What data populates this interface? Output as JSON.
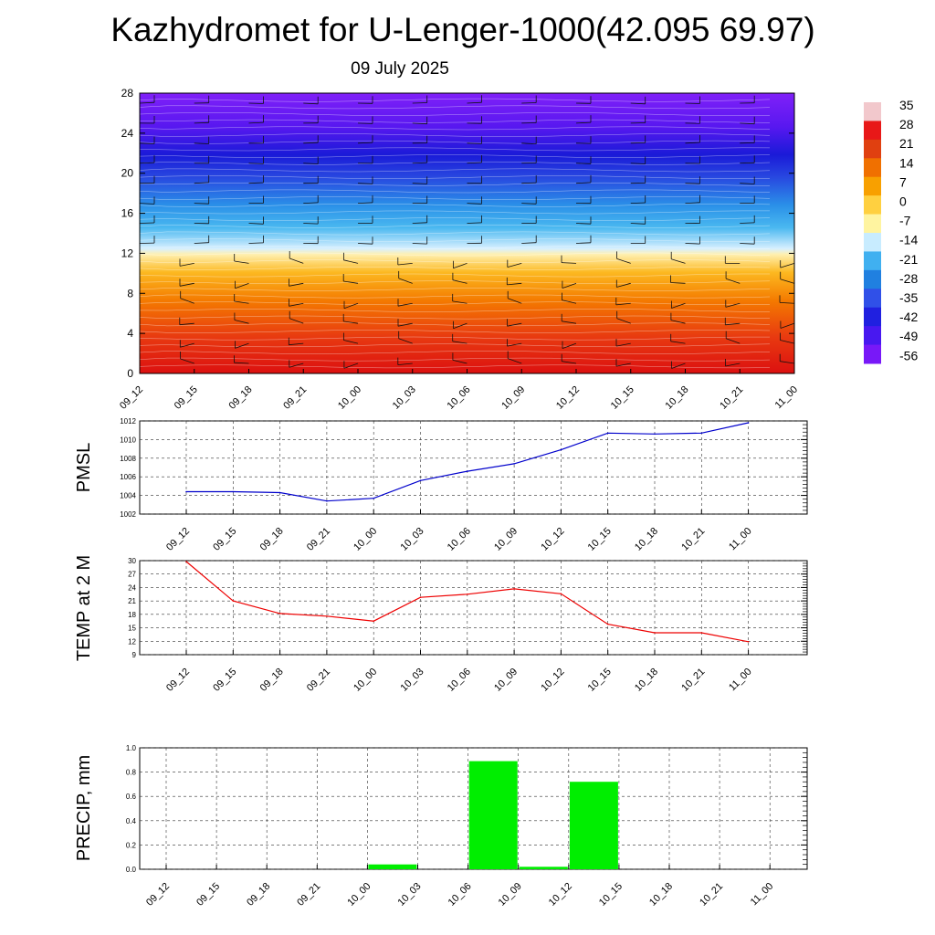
{
  "title": "Kazhydromet for U-Lenger-1000(42.095 69.97)",
  "subtitle": "09 July 2025",
  "time_labels": [
    "09_12",
    "09_15",
    "09_18",
    "09_21",
    "10_00",
    "10_03",
    "10_06",
    "10_09",
    "10_12",
    "10_15",
    "10_18",
    "10_21",
    "11_00"
  ],
  "colorbar": {
    "labels": [
      "35",
      "28",
      "21",
      "14",
      "7",
      "0",
      "-7",
      "-14",
      "-21",
      "-28",
      "-35",
      "-42",
      "-49",
      "-56"
    ],
    "colors": [
      "#f2c8cc",
      "#e81818",
      "#e04010",
      "#f07000",
      "#f8a000",
      "#ffd040",
      "#fff4a0",
      "#c8ecff",
      "#40b0f0",
      "#2080e0",
      "#3050e8",
      "#2020e0",
      "#4818f0",
      "#7818f8"
    ]
  },
  "chart_data": [
    {
      "type": "heatmap",
      "name": "temperature-wind cross-section",
      "x": [
        "09_12",
        "09_15",
        "09_18",
        "09_21",
        "10_00",
        "10_03",
        "10_06",
        "10_09",
        "10_12",
        "10_15",
        "10_18",
        "10_21",
        "11_00"
      ],
      "ylim": [
        0,
        28
      ],
      "yticks": [
        0,
        4,
        8,
        12,
        16,
        20,
        24,
        28
      ],
      "value_range": [
        -56,
        35
      ],
      "levels": [
        35,
        28,
        21,
        14,
        7,
        0,
        -7,
        -14,
        -21,
        -28,
        -35,
        -42,
        -49,
        -56
      ],
      "freezing_level_km": 12
    },
    {
      "type": "line",
      "ylabel": "PMSL",
      "x": [
        "09_12",
        "09_15",
        "09_18",
        "09_21",
        "10_00",
        "10_03",
        "10_06",
        "10_09",
        "10_12",
        "10_15",
        "10_18",
        "10_21",
        "11_00"
      ],
      "values": [
        1004.4,
        1004.4,
        1004.3,
        1003.4,
        1003.7,
        1005.6,
        1006.6,
        1007.4,
        1008.9,
        1010.7,
        1010.6,
        1010.7,
        1011.8
      ],
      "ylim": [
        1002,
        1012
      ],
      "yticks": [
        1002,
        1004,
        1006,
        1008,
        1010,
        1012
      ],
      "color": "#0000cc"
    },
    {
      "type": "line",
      "ylabel": "TEMP at 2 M",
      "x": [
        "09_12",
        "09_15",
        "09_18",
        "09_21",
        "10_00",
        "10_03",
        "10_06",
        "10_09",
        "10_12",
        "10_15",
        "10_18",
        "10_21",
        "11_00"
      ],
      "values": [
        29.8,
        21.0,
        18.2,
        17.6,
        16.5,
        21.8,
        22.5,
        23.7,
        22.6,
        15.8,
        13.9,
        13.9,
        11.9
      ],
      "ylim": [
        9,
        30
      ],
      "yticks": [
        9,
        12,
        15,
        18,
        21,
        24,
        27,
        30
      ],
      "color": "#ee0000"
    },
    {
      "type": "bar",
      "ylabel": "PRECIP, mm",
      "categories": [
        "09_12",
        "09_15",
        "09_18",
        "09_21",
        "10_00",
        "10_03",
        "10_06",
        "10_09",
        "10_12",
        "10_15",
        "10_18",
        "10_21",
        "11_00"
      ],
      "values": [
        0,
        0,
        0,
        0,
        0,
        0.04,
        0,
        0.89,
        0.02,
        0.72,
        0,
        0,
        0
      ],
      "ylim": [
        0,
        1.0
      ],
      "yticks": [
        "0.0",
        "0.2",
        "0.4",
        "0.6",
        "0.8",
        "1.0"
      ],
      "color": "#00ee00"
    }
  ]
}
